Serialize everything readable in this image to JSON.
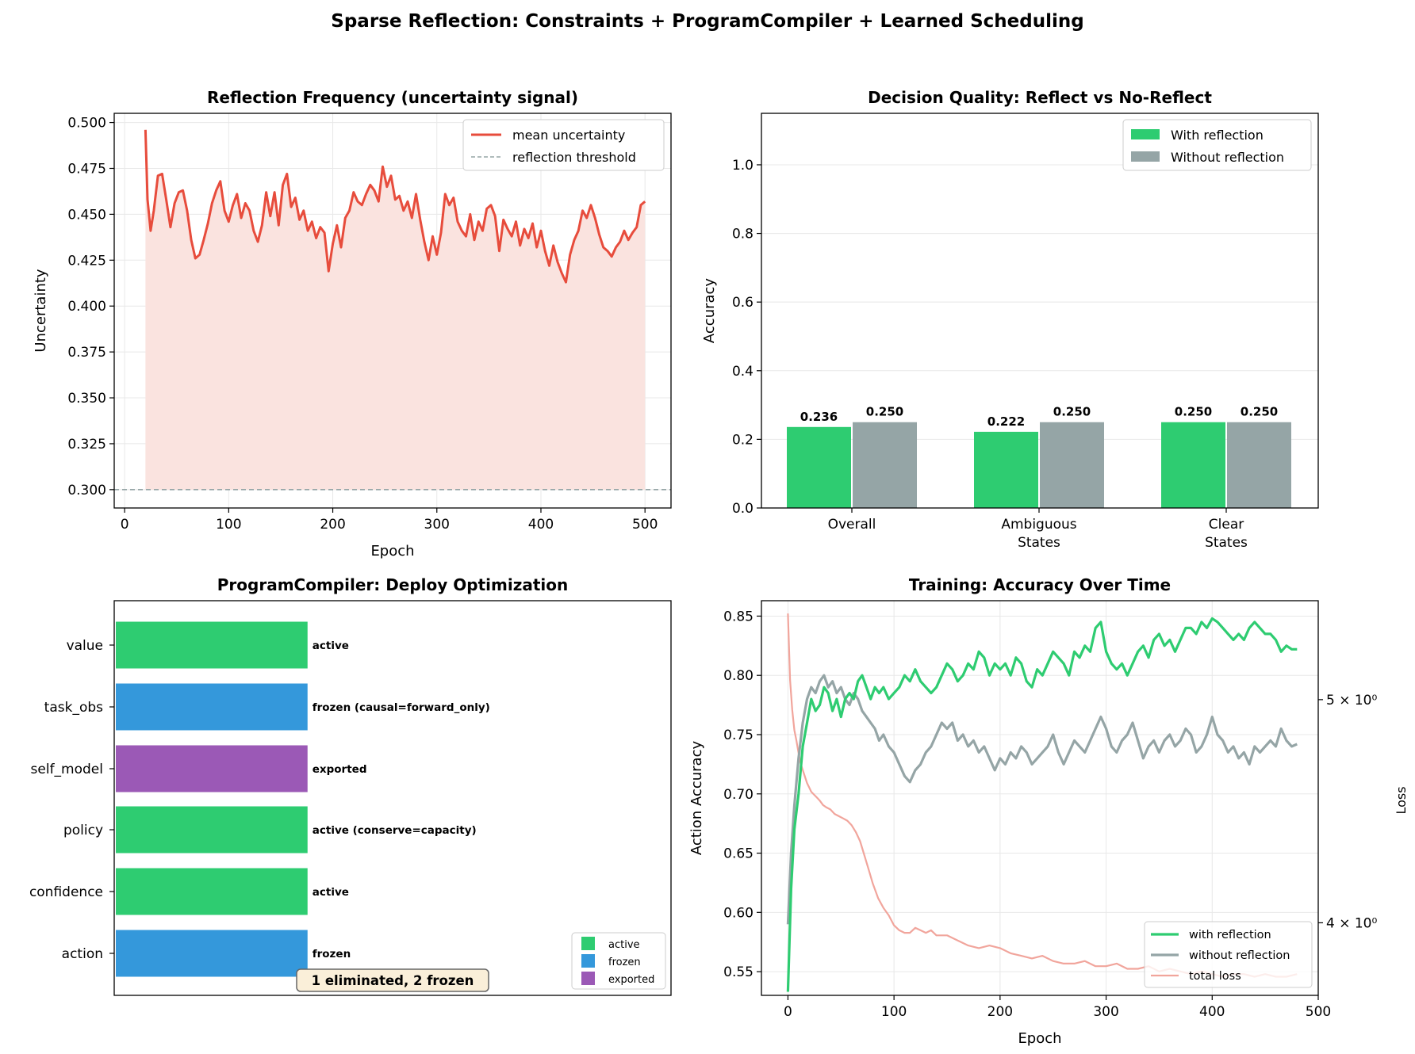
{
  "figure": {
    "title": "Sparse Reflection: Constraints + ProgramCompiler + Learned Scheduling"
  },
  "colors": {
    "red": "#e74c3c",
    "red_fill": "#fae3df",
    "green": "#2ecc71",
    "gray": "#95a5a6",
    "blue": "#3498db",
    "purple": "#9b59b6",
    "loss": "#f1a59c",
    "grid": "#e8e8e8"
  },
  "chart_data": [
    {
      "id": "uncertainty",
      "type": "line",
      "title": "Reflection Frequency (uncertainty signal)",
      "xlabel": "Epoch",
      "ylabel": "Uncertainty",
      "xlim": [
        -10,
        525
      ],
      "ylim": [
        0.29,
        0.505
      ],
      "xticks": [
        0,
        100,
        200,
        300,
        400,
        500
      ],
      "yticks": [
        0.3,
        0.325,
        0.35,
        0.375,
        0.4,
        0.425,
        0.45,
        0.475,
        0.5
      ],
      "ytick_labels": [
        "0.300",
        "0.325",
        "0.350",
        "0.375",
        "0.400",
        "0.425",
        "0.450",
        "0.475",
        "0.500"
      ],
      "legend": [
        "mean uncertainty",
        "reflection threshold"
      ],
      "threshold": 0.3,
      "series": [
        {
          "name": "mean uncertainty",
          "x": [
            20,
            22,
            25,
            28,
            32,
            36,
            40,
            44,
            48,
            52,
            56,
            60,
            64,
            68,
            72,
            76,
            80,
            84,
            88,
            92,
            96,
            100,
            104,
            108,
            112,
            116,
            120,
            124,
            128,
            132,
            136,
            140,
            144,
            148,
            152,
            156,
            160,
            164,
            168,
            172,
            176,
            180,
            184,
            188,
            192,
            196,
            200,
            204,
            208,
            212,
            216,
            220,
            224,
            228,
            232,
            236,
            240,
            244,
            248,
            252,
            256,
            260,
            264,
            268,
            272,
            276,
            280,
            284,
            288,
            292,
            296,
            300,
            304,
            308,
            312,
            316,
            320,
            324,
            328,
            332,
            336,
            340,
            344,
            348,
            352,
            356,
            360,
            364,
            368,
            372,
            376,
            380,
            384,
            388,
            392,
            396,
            400,
            404,
            408,
            412,
            416,
            420,
            424,
            428,
            432,
            436,
            440,
            444,
            448,
            452,
            456,
            460,
            464,
            468,
            472,
            476,
            480,
            484,
            488,
            492,
            496,
            500
          ],
          "values": [
            0.496,
            0.458,
            0.441,
            0.452,
            0.471,
            0.472,
            0.458,
            0.443,
            0.456,
            0.462,
            0.463,
            0.452,
            0.436,
            0.426,
            0.428,
            0.436,
            0.445,
            0.456,
            0.463,
            0.468,
            0.452,
            0.446,
            0.455,
            0.461,
            0.448,
            0.456,
            0.452,
            0.441,
            0.435,
            0.444,
            0.462,
            0.449,
            0.462,
            0.444,
            0.466,
            0.472,
            0.454,
            0.459,
            0.447,
            0.452,
            0.441,
            0.446,
            0.437,
            0.443,
            0.44,
            0.419,
            0.434,
            0.444,
            0.432,
            0.448,
            0.452,
            0.462,
            0.457,
            0.455,
            0.461,
            0.466,
            0.463,
            0.457,
            0.476,
            0.465,
            0.471,
            0.458,
            0.46,
            0.452,
            0.457,
            0.448,
            0.461,
            0.447,
            0.435,
            0.425,
            0.438,
            0.428,
            0.44,
            0.461,
            0.455,
            0.459,
            0.446,
            0.441,
            0.438,
            0.45,
            0.436,
            0.446,
            0.441,
            0.453,
            0.455,
            0.449,
            0.43,
            0.447,
            0.442,
            0.438,
            0.446,
            0.433,
            0.442,
            0.437,
            0.445,
            0.432,
            0.441,
            0.43,
            0.422,
            0.433,
            0.424,
            0.418,
            0.413,
            0.428,
            0.436,
            0.441,
            0.452,
            0.448,
            0.455,
            0.448,
            0.439,
            0.432,
            0.43,
            0.427,
            0.432,
            0.435,
            0.441,
            0.436,
            0.44,
            0.443,
            0.455,
            0.457
          ]
        }
      ]
    },
    {
      "id": "decision",
      "type": "bar",
      "title": "Decision Quality: Reflect vs No-Reflect",
      "xlabel": "",
      "ylabel": "Accuracy",
      "ylim": [
        0,
        1.15
      ],
      "yticks": [
        0,
        0.2,
        0.4,
        0.6,
        0.8,
        1.0
      ],
      "ytick_labels": [
        "0.0",
        "0.2",
        "0.4",
        "0.6",
        "0.8",
        "1.0"
      ],
      "categories": [
        [
          "Overall"
        ],
        [
          "Ambiguous",
          "States"
        ],
        [
          "Clear",
          "States"
        ]
      ],
      "legend": [
        "With reflection",
        "Without reflection"
      ],
      "series": [
        {
          "name": "With reflection",
          "values": [
            0.236,
            0.222,
            0.25
          ],
          "labels": [
            "0.236",
            "0.222",
            "0.250"
          ]
        },
        {
          "name": "Without reflection",
          "values": [
            0.25,
            0.25,
            0.25
          ],
          "labels": [
            "0.250",
            "0.250",
            "0.250"
          ]
        }
      ]
    },
    {
      "id": "compiler",
      "type": "bar",
      "orientation": "horizontal",
      "title": "ProgramCompiler: Deploy Optimization",
      "categories": [
        "value",
        "task_obs",
        "self_model",
        "policy",
        "confidence",
        "action"
      ],
      "values": [
        1,
        1,
        1,
        1,
        1,
        1
      ],
      "statuses": [
        "active",
        "frozen",
        "exported",
        "active",
        "active",
        "frozen"
      ],
      "labels": [
        "active",
        "frozen (causal=forward_only)",
        "exported",
        "active (conserve=capacity)",
        "active",
        "frozen"
      ],
      "legend": [
        "active",
        "frozen",
        "exported"
      ],
      "annotation": "1 eliminated, 2 frozen"
    },
    {
      "id": "training",
      "type": "line",
      "title": "Training: Accuracy Over Time",
      "xlabel": "Epoch",
      "ylabel": "Action Accuracy",
      "ylabel_right": "Loss",
      "xlim": [
        -25,
        500
      ],
      "xticks": [
        0,
        100,
        200,
        300,
        400,
        500
      ],
      "ylim": [
        0.53,
        0.863
      ],
      "yticks": [
        0.55,
        0.6,
        0.65,
        0.7,
        0.75,
        0.8,
        0.85
      ],
      "ytick_labels": [
        "0.55",
        "0.60",
        "0.65",
        "0.70",
        "0.75",
        "0.80",
        "0.85"
      ],
      "y2_log": true,
      "y2lim": [
        3.72,
        5.52
      ],
      "y2ticks": [
        4,
        5
      ],
      "y2tick_labels": [
        "4 × 10⁰",
        "5 × 10⁰"
      ],
      "legend": [
        "with reflection",
        "without reflection",
        "total loss"
      ],
      "series": [
        {
          "name": "with reflection",
          "x": [
            0,
            3,
            6,
            10,
            14,
            18,
            22,
            26,
            30,
            34,
            38,
            42,
            46,
            50,
            54,
            58,
            62,
            66,
            70,
            74,
            78,
            82,
            86,
            90,
            95,
            100,
            105,
            110,
            115,
            120,
            125,
            130,
            135,
            140,
            145,
            150,
            155,
            160,
            165,
            170,
            175,
            180,
            185,
            190,
            195,
            200,
            205,
            210,
            215,
            220,
            225,
            230,
            235,
            240,
            245,
            250,
            255,
            260,
            265,
            270,
            275,
            280,
            285,
            290,
            295,
            300,
            305,
            310,
            315,
            320,
            325,
            330,
            335,
            340,
            345,
            350,
            355,
            360,
            365,
            370,
            375,
            380,
            385,
            390,
            395,
            400,
            405,
            410,
            415,
            420,
            425,
            430,
            435,
            440,
            445,
            450,
            455,
            460,
            465,
            470,
            475,
            480
          ],
          "values": [
            0.533,
            0.62,
            0.67,
            0.7,
            0.74,
            0.76,
            0.78,
            0.77,
            0.775,
            0.79,
            0.785,
            0.77,
            0.78,
            0.765,
            0.78,
            0.785,
            0.78,
            0.795,
            0.8,
            0.79,
            0.78,
            0.79,
            0.785,
            0.79,
            0.78,
            0.785,
            0.79,
            0.8,
            0.795,
            0.805,
            0.795,
            0.79,
            0.785,
            0.79,
            0.8,
            0.81,
            0.805,
            0.795,
            0.8,
            0.81,
            0.805,
            0.82,
            0.815,
            0.8,
            0.81,
            0.805,
            0.81,
            0.8,
            0.815,
            0.81,
            0.795,
            0.79,
            0.805,
            0.8,
            0.81,
            0.82,
            0.815,
            0.81,
            0.8,
            0.82,
            0.815,
            0.825,
            0.82,
            0.84,
            0.845,
            0.82,
            0.81,
            0.805,
            0.81,
            0.8,
            0.81,
            0.82,
            0.825,
            0.815,
            0.83,
            0.835,
            0.825,
            0.83,
            0.82,
            0.83,
            0.84,
            0.84,
            0.835,
            0.845,
            0.84,
            0.848,
            0.845,
            0.84,
            0.835,
            0.83,
            0.835,
            0.83,
            0.84,
            0.845,
            0.84,
            0.835,
            0.835,
            0.83,
            0.82,
            0.825,
            0.822,
            0.822
          ]
        },
        {
          "name": "without reflection",
          "x": [
            0,
            3,
            6,
            10,
            14,
            18,
            22,
            26,
            30,
            34,
            38,
            42,
            46,
            50,
            54,
            58,
            62,
            66,
            70,
            74,
            78,
            82,
            86,
            90,
            95,
            100,
            105,
            110,
            115,
            120,
            125,
            130,
            135,
            140,
            145,
            150,
            155,
            160,
            165,
            170,
            175,
            180,
            185,
            190,
            195,
            200,
            205,
            210,
            215,
            220,
            225,
            230,
            235,
            240,
            245,
            250,
            255,
            260,
            265,
            270,
            275,
            280,
            285,
            290,
            295,
            300,
            305,
            310,
            315,
            320,
            325,
            330,
            335,
            340,
            345,
            350,
            355,
            360,
            365,
            370,
            375,
            380,
            385,
            390,
            395,
            400,
            405,
            410,
            415,
            420,
            425,
            430,
            435,
            440,
            445,
            450,
            455,
            460,
            465,
            470,
            475,
            480
          ],
          "values": [
            0.59,
            0.65,
            0.69,
            0.73,
            0.76,
            0.78,
            0.79,
            0.785,
            0.795,
            0.8,
            0.79,
            0.795,
            0.785,
            0.79,
            0.78,
            0.775,
            0.785,
            0.78,
            0.77,
            0.765,
            0.76,
            0.755,
            0.745,
            0.75,
            0.74,
            0.735,
            0.725,
            0.715,
            0.71,
            0.72,
            0.725,
            0.735,
            0.74,
            0.75,
            0.76,
            0.755,
            0.76,
            0.745,
            0.75,
            0.74,
            0.745,
            0.735,
            0.74,
            0.73,
            0.72,
            0.73,
            0.725,
            0.735,
            0.73,
            0.74,
            0.735,
            0.725,
            0.73,
            0.735,
            0.74,
            0.75,
            0.735,
            0.725,
            0.735,
            0.745,
            0.74,
            0.735,
            0.745,
            0.755,
            0.765,
            0.755,
            0.74,
            0.735,
            0.745,
            0.75,
            0.76,
            0.745,
            0.73,
            0.74,
            0.745,
            0.735,
            0.745,
            0.75,
            0.74,
            0.745,
            0.755,
            0.75,
            0.735,
            0.74,
            0.75,
            0.765,
            0.75,
            0.745,
            0.735,
            0.74,
            0.73,
            0.735,
            0.725,
            0.74,
            0.735,
            0.74,
            0.745,
            0.74,
            0.755,
            0.745,
            0.74,
            0.742
          ]
        },
        {
          "name": "total loss",
          "axis": "right",
          "x": [
            0,
            2,
            4,
            6,
            8,
            10,
            12,
            14,
            16,
            18,
            20,
            22,
            24,
            26,
            28,
            30,
            33,
            36,
            40,
            44,
            48,
            52,
            56,
            60,
            64,
            68,
            72,
            76,
            80,
            85,
            90,
            95,
            100,
            105,
            110,
            115,
            120,
            125,
            130,
            135,
            140,
            150,
            160,
            170,
            180,
            190,
            200,
            210,
            220,
            230,
            240,
            250,
            260,
            270,
            280,
            290,
            300,
            310,
            320,
            330,
            340,
            350,
            360,
            370,
            380,
            390,
            400,
            410,
            420,
            430,
            440,
            450,
            460,
            470,
            480
          ],
          "values": [
            5.45,
            5.1,
            4.95,
            4.85,
            4.8,
            4.74,
            4.69,
            4.66,
            4.63,
            4.6,
            4.58,
            4.56,
            4.55,
            4.54,
            4.53,
            4.52,
            4.5,
            4.49,
            4.48,
            4.46,
            4.45,
            4.44,
            4.43,
            4.41,
            4.38,
            4.34,
            4.28,
            4.22,
            4.16,
            4.1,
            4.06,
            4.03,
            3.99,
            3.97,
            3.96,
            3.96,
            3.98,
            3.97,
            3.96,
            3.97,
            3.95,
            3.95,
            3.93,
            3.91,
            3.9,
            3.91,
            3.9,
            3.88,
            3.87,
            3.86,
            3.87,
            3.85,
            3.84,
            3.84,
            3.85,
            3.83,
            3.83,
            3.84,
            3.82,
            3.82,
            3.83,
            3.81,
            3.82,
            3.81,
            3.8,
            3.81,
            3.8,
            3.79,
            3.8,
            3.8,
            3.79,
            3.8,
            3.79,
            3.79,
            3.8
          ]
        }
      ]
    }
  ]
}
